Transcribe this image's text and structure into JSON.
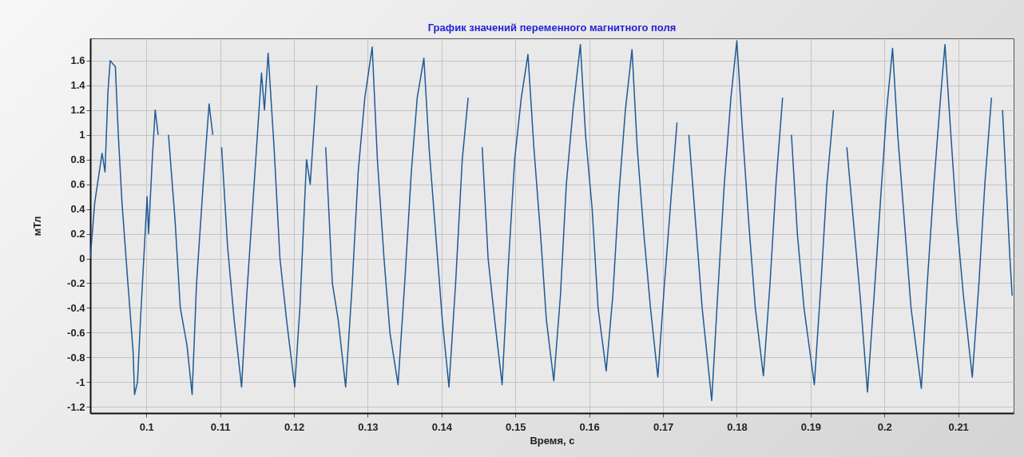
{
  "chart_data": {
    "type": "line",
    "title": "График значений переменного магнитного поля",
    "xlabel": "Время, с",
    "ylabel": "мТл",
    "color": "#1f5a96",
    "grid": true,
    "xlim": [
      0.0924,
      0.2175
    ],
    "ylim": [
      -1.25,
      1.78
    ],
    "xticks": [
      0.1,
      0.11,
      0.12,
      0.13,
      0.14,
      0.15,
      0.16,
      0.17,
      0.18,
      0.19,
      0.2,
      0.21
    ],
    "yticks": [
      -1.2,
      -1,
      -0.8,
      -0.6,
      -0.4,
      -0.2,
      0,
      0.2,
      0.4,
      0.6,
      0.8,
      1,
      1.2,
      1.4,
      1.6
    ],
    "x": [
      0.0924,
      0.093,
      0.094,
      0.0944,
      0.0948,
      0.0951,
      0.0958,
      0.0962,
      0.0967,
      0.0975,
      0.0982,
      0.0984,
      0.0988,
      0.0992,
      0.1001,
      0.1003,
      0.1008,
      0.1012,
      0.1016,
      0.1024,
      0.103,
      0.1039,
      0.1046,
      0.1055,
      0.1062,
      0.1068,
      0.1077,
      0.1085,
      0.109,
      0.1095,
      0.1102,
      0.111,
      0.1119,
      0.1129,
      0.1136,
      0.1146,
      0.1156,
      0.116,
      0.1165,
      0.1173,
      0.1181,
      0.119,
      0.1201,
      0.1208,
      0.1217,
      0.1222,
      0.1231,
      0.1235,
      0.1243,
      0.1252,
      0.126,
      0.127,
      0.1279,
      0.1287,
      0.1296,
      0.1306,
      0.1313,
      0.1322,
      0.133,
      0.1341,
      0.135,
      0.1359,
      0.1367,
      0.1376,
      0.1383,
      0.1392,
      0.1401,
      0.141,
      0.1419,
      0.1428,
      0.1436,
      0.1447,
      0.1455,
      0.1463,
      0.1472,
      0.1482,
      0.149,
      0.1499,
      0.1508,
      0.1517,
      0.1525,
      0.1534,
      0.1542,
      0.1552,
      0.1561,
      0.1569,
      0.1578,
      0.1588,
      0.1595,
      0.1604,
      0.1612,
      0.1623,
      0.1632,
      0.164,
      0.1649,
      0.1658,
      0.1665,
      0.1674,
      0.1683,
      0.1693,
      0.1702,
      0.1711,
      0.1719,
      0.1728,
      0.1735,
      0.1744,
      0.1753,
      0.1766,
      0.1774,
      0.1783,
      0.1792,
      0.18,
      0.1808,
      0.1816,
      0.1825,
      0.1836,
      0.1845,
      0.1853,
      0.1862,
      0.1866,
      0.1874,
      0.1882,
      0.1891,
      0.1905,
      0.1914,
      0.1922,
      0.1931,
      0.1942,
      0.1949,
      0.1958,
      0.1967,
      0.1977,
      0.1986,
      0.1995,
      0.2003,
      0.2011,
      0.2018,
      0.2027,
      0.2036,
      0.205,
      0.2058,
      0.2067,
      0.2076,
      0.2082,
      0.209,
      0.2098,
      0.2107,
      0.2119,
      0.2128,
      0.2136,
      0.2145,
      0.2152,
      0.216,
      0.217,
      0.2173
    ],
    "values": [
      0.0,
      0.45,
      0.85,
      0.7,
      1.35,
      1.6,
      1.55,
      1.0,
      0.45,
      -0.2,
      -0.75,
      -1.1,
      -1.0,
      -0.5,
      0.5,
      0.2,
      0.8,
      1.2,
      1.0,
      null,
      1.0,
      0.3,
      -0.4,
      -0.7,
      -1.1,
      -0.2,
      0.6,
      1.25,
      1.0,
      null,
      0.9,
      0.1,
      -0.5,
      -1.04,
      -0.3,
      0.6,
      1.5,
      1.2,
      1.66,
      0.9,
      0.0,
      -0.5,
      -1.04,
      -0.4,
      0.8,
      0.6,
      1.4,
      null,
      0.9,
      -0.2,
      -0.5,
      -1.04,
      -0.2,
      0.7,
      1.3,
      1.71,
      0.8,
      0.0,
      -0.6,
      -1.02,
      -0.2,
      0.7,
      1.3,
      1.62,
      0.9,
      0.2,
      -0.5,
      -1.04,
      -0.2,
      0.8,
      1.3,
      null,
      0.9,
      0.0,
      -0.5,
      -1.02,
      -0.1,
      0.8,
      1.3,
      1.65,
      0.9,
      0.2,
      -0.5,
      -0.99,
      -0.3,
      0.6,
      1.2,
      1.73,
      1.0,
      0.4,
      -0.4,
      -0.91,
      -0.3,
      0.5,
      1.2,
      1.69,
      0.9,
      0.2,
      -0.4,
      -0.96,
      -0.2,
      0.5,
      1.1,
      null,
      1.0,
      0.3,
      -0.4,
      -1.15,
      -0.3,
      0.6,
      1.3,
      1.76,
      1.0,
      0.3,
      -0.4,
      -0.95,
      -0.2,
      0.6,
      1.3,
      null,
      1.0,
      0.2,
      -0.4,
      -1.02,
      -0.2,
      0.6,
      1.2,
      null,
      0.9,
      0.3,
      -0.3,
      -1.08,
      -0.3,
      0.5,
      1.2,
      1.7,
      1.0,
      0.3,
      -0.4,
      -1.05,
      -0.2,
      0.6,
      1.3,
      1.73,
      1.0,
      0.3,
      -0.3,
      -0.96,
      -0.2,
      0.6,
      1.3,
      null,
      1.2,
      0.0,
      -0.3
    ]
  }
}
